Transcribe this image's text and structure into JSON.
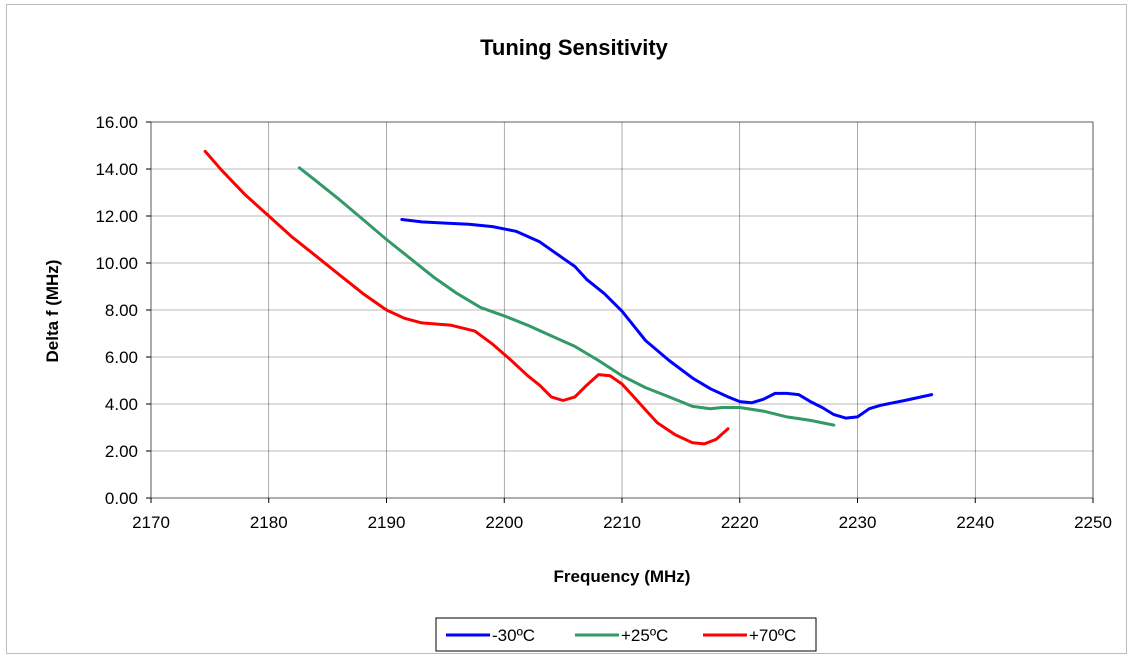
{
  "chart_data": {
    "type": "line",
    "title": "Tuning Sensitivity",
    "xlabel": "Frequency (MHz)",
    "ylabel": "Delta f (MHz)",
    "xlim": [
      2170,
      2250
    ],
    "ylim": [
      0,
      16
    ],
    "x_ticks": [
      "2170",
      "2180",
      "2190",
      "2200",
      "2210",
      "2220",
      "2230",
      "2240",
      "2250"
    ],
    "y_ticks": [
      "0.00",
      "2.00",
      "4.00",
      "6.00",
      "8.00",
      "10.00",
      "12.00",
      "14.00",
      "16.00"
    ],
    "grid": true,
    "legend_position": "bottom",
    "series": [
      {
        "name": "-30ºC",
        "color": "#0000ff",
        "points": [
          [
            2191.3,
            11.85
          ],
          [
            2193,
            11.75
          ],
          [
            2195,
            11.7
          ],
          [
            2197,
            11.65
          ],
          [
            2199,
            11.55
          ],
          [
            2201,
            11.35
          ],
          [
            2203,
            10.9
          ],
          [
            2205,
            10.2
          ],
          [
            2206,
            9.85
          ],
          [
            2207,
            9.3
          ],
          [
            2208.5,
            8.7
          ],
          [
            2210,
            7.95
          ],
          [
            2212,
            6.7
          ],
          [
            2214,
            5.85
          ],
          [
            2216,
            5.1
          ],
          [
            2217.5,
            4.65
          ],
          [
            2219,
            4.3
          ],
          [
            2220,
            4.1
          ],
          [
            2221,
            4.05
          ],
          [
            2222,
            4.2
          ],
          [
            2223,
            4.45
          ],
          [
            2224,
            4.45
          ],
          [
            2225,
            4.4
          ],
          [
            2226,
            4.1
          ],
          [
            2227,
            3.85
          ],
          [
            2228,
            3.55
          ],
          [
            2229,
            3.4
          ],
          [
            2230,
            3.45
          ],
          [
            2231,
            3.8
          ],
          [
            2232,
            3.95
          ],
          [
            2234,
            4.15
          ],
          [
            2236.3,
            4.4
          ]
        ]
      },
      {
        "name": "+25ºC",
        "color": "#339966",
        "points": [
          [
            2182.6,
            14.05
          ],
          [
            2184,
            13.5
          ],
          [
            2186,
            12.7
          ],
          [
            2188,
            11.85
          ],
          [
            2190,
            11.0
          ],
          [
            2192,
            10.2
          ],
          [
            2194,
            9.4
          ],
          [
            2196,
            8.7
          ],
          [
            2198,
            8.1
          ],
          [
            2200,
            7.75
          ],
          [
            2202,
            7.35
          ],
          [
            2204,
            6.9
          ],
          [
            2206,
            6.45
          ],
          [
            2208,
            5.85
          ],
          [
            2210,
            5.2
          ],
          [
            2212,
            4.7
          ],
          [
            2214,
            4.3
          ],
          [
            2216,
            3.9
          ],
          [
            2217.5,
            3.8
          ],
          [
            2218.5,
            3.85
          ],
          [
            2220,
            3.85
          ],
          [
            2222,
            3.7
          ],
          [
            2224,
            3.45
          ],
          [
            2226,
            3.3
          ],
          [
            2228,
            3.1
          ]
        ]
      },
      {
        "name": "+70ºC",
        "color": "#ff0000",
        "points": [
          [
            2174.6,
            14.75
          ],
          [
            2176,
            13.95
          ],
          [
            2178,
            12.9
          ],
          [
            2180,
            12.0
          ],
          [
            2182,
            11.1
          ],
          [
            2184,
            10.3
          ],
          [
            2186,
            9.5
          ],
          [
            2188,
            8.7
          ],
          [
            2190,
            8.0
          ],
          [
            2191.5,
            7.65
          ],
          [
            2193,
            7.45
          ],
          [
            2195.5,
            7.35
          ],
          [
            2197.5,
            7.1
          ],
          [
            2199,
            6.55
          ],
          [
            2200.5,
            5.9
          ],
          [
            2202,
            5.2
          ],
          [
            2203,
            4.8
          ],
          [
            2204,
            4.3
          ],
          [
            2205,
            4.15
          ],
          [
            2206,
            4.3
          ],
          [
            2207,
            4.8
          ],
          [
            2208,
            5.25
          ],
          [
            2209,
            5.2
          ],
          [
            2210,
            4.85
          ],
          [
            2211,
            4.3
          ],
          [
            2212,
            3.75
          ],
          [
            2213,
            3.2
          ],
          [
            2214.5,
            2.7
          ],
          [
            2216,
            2.35
          ],
          [
            2217,
            2.3
          ],
          [
            2218,
            2.5
          ],
          [
            2219,
            2.95
          ]
        ]
      }
    ]
  }
}
